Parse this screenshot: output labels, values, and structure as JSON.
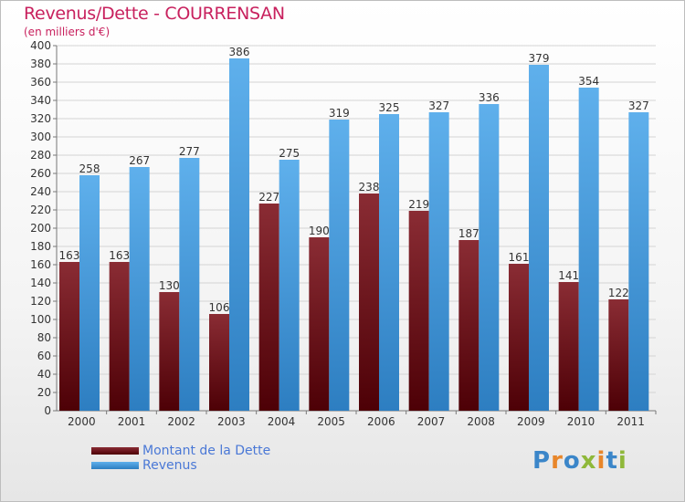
{
  "title": "Revenus/Dette - COURRENSAN",
  "subtitle": "(en milliers d'€)",
  "colors": {
    "dette_top": "#8a2c34",
    "dette_bottom": "#4d0006",
    "revenus_top": "#5fb0ec",
    "revenus_bottom": "#2d7ec1",
    "title": "#c8215e",
    "legend_text": "#4a78d6"
  },
  "legend": {
    "dette_label": "Montant de la Dette",
    "revenus_label": "Revenus"
  },
  "logo": {
    "text": "Proxiti",
    "letters": [
      "P",
      "r",
      "o",
      "x",
      "i",
      "t",
      "i"
    ],
    "letter_colors": [
      "#3b86c9",
      "#e8862a",
      "#3b86c9",
      "#8fb83a",
      "#e8862a",
      "#3b86c9",
      "#8fb83a"
    ]
  },
  "chart_data": {
    "type": "bar",
    "title": "Revenus/Dette - COURRENSAN",
    "ylabel": "(en milliers d'€)",
    "xlabel": "",
    "ylim": [
      0,
      400
    ],
    "y_ticks": [
      0,
      20,
      40,
      60,
      80,
      100,
      120,
      140,
      160,
      180,
      200,
      220,
      240,
      260,
      280,
      300,
      320,
      340,
      360,
      380,
      400
    ],
    "grid": true,
    "categories": [
      "2000",
      "2001",
      "2002",
      "2003",
      "2004",
      "2005",
      "2006",
      "2007",
      "2008",
      "2009",
      "2010",
      "2011"
    ],
    "series": [
      {
        "name": "Montant de la Dette",
        "values": [
          163,
          163,
          130,
          106,
          227,
          190,
          238,
          219,
          187,
          161,
          141,
          122
        ]
      },
      {
        "name": "Revenus",
        "values": [
          258,
          267,
          277,
          386,
          275,
          319,
          325,
          327,
          336,
          379,
          354,
          327
        ]
      }
    ],
    "legend_position": "bottom-left"
  }
}
